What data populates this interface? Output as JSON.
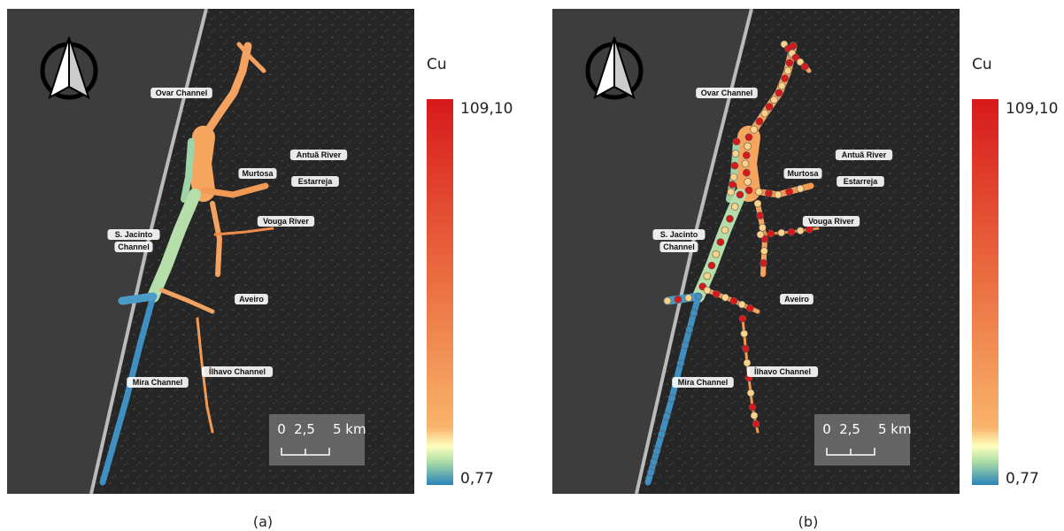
{
  "panels": [
    {
      "caption": "(a)",
      "legend": {
        "title": "Cu",
        "max": "109,10",
        "min": "0,77"
      },
      "scale_bar": [
        "0",
        "2,5",
        "5 km"
      ],
      "places": [
        [
          "Ovar Channel"
        ],
        [
          "Antuã River"
        ],
        [
          "Murtosa"
        ],
        [
          "Estarreja"
        ],
        [
          "Vouga River"
        ],
        [
          "S. Jacinto",
          "Channel"
        ],
        [
          "Aveiro"
        ],
        [
          "Ílhavo Channel"
        ],
        [
          "Mira Channel"
        ]
      ]
    },
    {
      "caption": "(b)",
      "legend": {
        "title": "Cu",
        "max": "109,10",
        "min": "0,77"
      },
      "scale_bar": [
        "0",
        "2,5",
        "5 km"
      ],
      "places": [
        [
          "Ovar Channel"
        ],
        [
          "Antuã River"
        ],
        [
          "Murtosa"
        ],
        [
          "Estarreja"
        ],
        [
          "Vouga River"
        ],
        [
          "S. Jacinto",
          "Channel"
        ],
        [
          "Aveiro"
        ],
        [
          "Ílhavo Channel"
        ],
        [
          "Mira Channel"
        ]
      ]
    }
  ]
}
